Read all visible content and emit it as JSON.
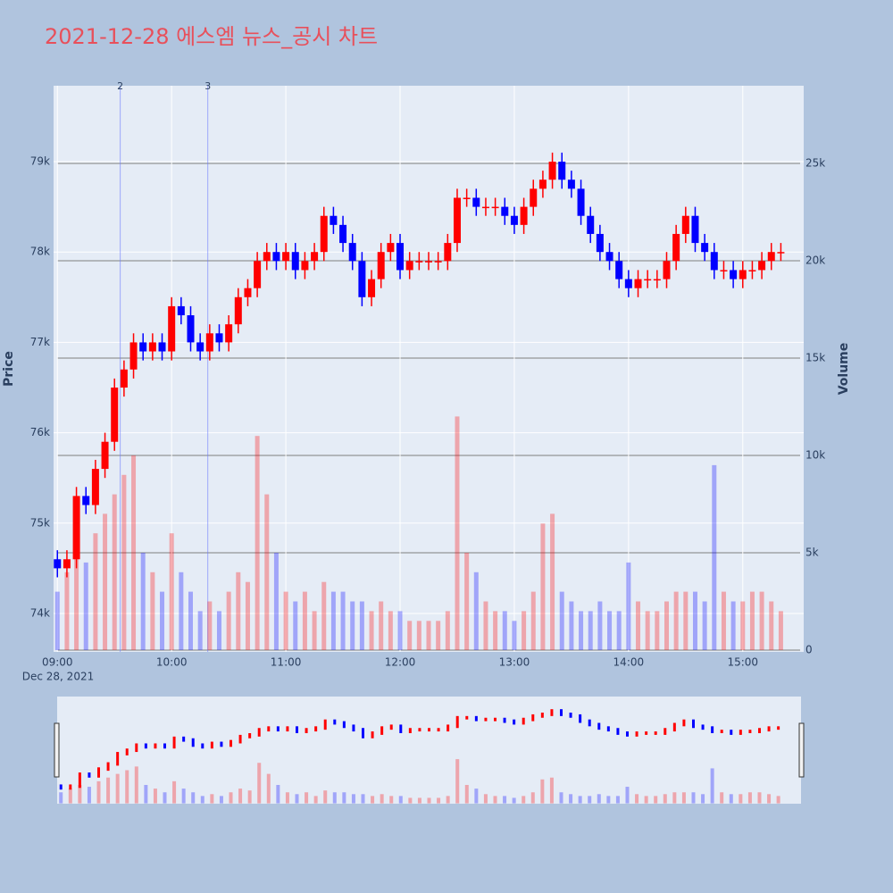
{
  "chart_data": {
    "type": "candlestick",
    "title": "2021-12-28 에스엠 뉴스_공시 차트",
    "y_label": "Price",
    "y2_label": "Volume",
    "x_date_label": "Dec 28, 2021",
    "xlim": [
      "08:58",
      "15:32"
    ],
    "xticks": [
      "09:00",
      "10:00",
      "11:00",
      "12:00",
      "13:00",
      "14:00",
      "15:00"
    ],
    "ylim": [
      73575,
      79840
    ],
    "yticks": [
      {
        "value": 74000,
        "label": "74k"
      },
      {
        "value": 75000,
        "label": "75k"
      },
      {
        "value": 76000,
        "label": "76k"
      },
      {
        "value": 77000,
        "label": "77k"
      },
      {
        "value": 78000,
        "label": "78k"
      },
      {
        "value": 79000,
        "label": "79k"
      }
    ],
    "y2lim": [
      -92,
      28990
    ],
    "y2ticks": [
      0,
      {
        "value": 5000,
        "label": "5k"
      },
      {
        "value": 10000,
        "label": "10k"
      },
      {
        "value": 15000,
        "label": "15k"
      },
      {
        "value": 20000,
        "label": "20k"
      },
      {
        "value": 25000,
        "label": "25k"
      }
    ],
    "increasing_color": "#ff0000",
    "decreasing_color": "#0000ff",
    "x": [
      "09:00",
      "09:05",
      "09:10",
      "09:15",
      "09:20",
      "09:25",
      "09:30",
      "09:35",
      "09:40",
      "09:45",
      "09:50",
      "09:55",
      "10:00",
      "10:05",
      "10:10",
      "10:15",
      "10:20",
      "10:25",
      "10:30",
      "10:35",
      "10:40",
      "10:45",
      "10:50",
      "10:55",
      "11:00",
      "11:05",
      "11:10",
      "11:15",
      "11:20",
      "11:25",
      "11:30",
      "11:35",
      "11:40",
      "11:45",
      "11:50",
      "11:55",
      "12:00",
      "12:05",
      "12:10",
      "12:15",
      "12:20",
      "12:25",
      "12:30",
      "12:35",
      "12:40",
      "12:45",
      "12:50",
      "12:55",
      "13:00",
      "13:05",
      "13:10",
      "13:15",
      "13:20",
      "13:25",
      "13:30",
      "13:35",
      "13:40",
      "13:45",
      "13:50",
      "13:55",
      "14:00",
      "14:05",
      "14:10",
      "14:15",
      "14:20",
      "14:25",
      "14:30",
      "14:35",
      "14:40",
      "14:45",
      "14:50",
      "14:55",
      "15:00",
      "15:05",
      "15:10",
      "15:15",
      "15:20"
    ],
    "open": [
      74600,
      74500,
      74600,
      75300,
      75200,
      75600,
      75900,
      76500,
      76700,
      77000,
      76900,
      77000,
      76900,
      77400,
      77300,
      77000,
      76900,
      77100,
      77000,
      77200,
      77500,
      77600,
      77900,
      78000,
      77900,
      78000,
      77800,
      77900,
      78000,
      78400,
      78300,
      78100,
      77900,
      77500,
      77700,
      78000,
      78100,
      77800,
      77900,
      77900,
      77900,
      77900,
      78100,
      78600,
      78600,
      78500,
      78500,
      78500,
      78400,
      78300,
      78500,
      78700,
      78800,
      79000,
      78800,
      78700,
      78400,
      78200,
      78000,
      77900,
      77700,
      77600,
      77700,
      77700,
      77700,
      77900,
      78200,
      78400,
      78100,
      78000,
      77800,
      77800,
      77700,
      77800,
      77800,
      77900,
      78000
    ],
    "high": [
      74700,
      74700,
      75400,
      75400,
      75700,
      76000,
      76600,
      76800,
      77100,
      77100,
      77100,
      77100,
      77500,
      77500,
      77400,
      77100,
      77200,
      77200,
      77300,
      77600,
      77700,
      78000,
      78100,
      78100,
      78100,
      78100,
      78000,
      78100,
      78500,
      78500,
      78400,
      78200,
      78000,
      77800,
      78100,
      78200,
      78200,
      78000,
      78000,
      78000,
      78000,
      78200,
      78700,
      78700,
      78700,
      78600,
      78600,
      78600,
      78500,
      78600,
      78800,
      78900,
      79100,
      79100,
      78900,
      78800,
      78500,
      78300,
      78100,
      78000,
      77800,
      77800,
      77800,
      77800,
      78000,
      78300,
      78500,
      78500,
      78200,
      78100,
      77900,
      77900,
      77900,
      77900,
      78000,
      78100,
      78100
    ],
    "low": [
      74400,
      74400,
      74500,
      75100,
      75100,
      75500,
      75800,
      76400,
      76600,
      76800,
      76800,
      76800,
      76800,
      77200,
      76900,
      76800,
      76800,
      76900,
      76900,
      77100,
      77400,
      77500,
      77800,
      77800,
      77800,
      77700,
      77700,
      77800,
      77900,
      78200,
      78000,
      77800,
      77400,
      77400,
      77600,
      77900,
      77700,
      77700,
      77800,
      77800,
      77800,
      77800,
      78000,
      78500,
      78400,
      78400,
      78400,
      78300,
      78200,
      78200,
      78400,
      78600,
      78700,
      78700,
      78600,
      78300,
      78100,
      77900,
      77800,
      77600,
      77500,
      77500,
      77600,
      77600,
      77600,
      77800,
      78100,
      78000,
      77900,
      77700,
      77700,
      77600,
      77600,
      77700,
      77700,
      77800,
      77900
    ],
    "close": [
      74500,
      74600,
      75300,
      75200,
      75600,
      75900,
      76500,
      76700,
      77000,
      76900,
      77000,
      76900,
      77400,
      77300,
      77000,
      76900,
      77100,
      77000,
      77200,
      77500,
      77600,
      77900,
      78000,
      77900,
      78000,
      77800,
      77900,
      78000,
      78400,
      78300,
      78100,
      77900,
      77500,
      77700,
      78000,
      78100,
      77800,
      77900,
      77900,
      77900,
      77900,
      78100,
      78600,
      78600,
      78500,
      78500,
      78500,
      78400,
      78300,
      78500,
      78700,
      78800,
      79000,
      78800,
      78700,
      78400,
      78200,
      78000,
      77900,
      77700,
      77600,
      77700,
      77700,
      77700,
      77900,
      78200,
      78400,
      78100,
      78000,
      77800,
      77800,
      77700,
      77800,
      77800,
      77900,
      78000,
      78000
    ],
    "volume": [
      3000,
      4000,
      5000,
      4500,
      6000,
      7000,
      8000,
      9000,
      10000,
      5000,
      4000,
      3000,
      6000,
      4000,
      3000,
      2000,
      2500,
      2000,
      3000,
      4000,
      3500,
      11000,
      8000,
      5000,
      3000,
      2500,
      3000,
      2000,
      3500,
      3000,
      3000,
      2500,
      2500,
      2000,
      2500,
      2000,
      2000,
      1500,
      1500,
      1500,
      1500,
      2000,
      12000,
      5000,
      4000,
      2500,
      2000,
      2000,
      1500,
      2000,
      3000,
      6500,
      7000,
      3000,
      2500,
      2000,
      2000,
      2500,
      2000,
      2000,
      4500,
      2500,
      2000,
      2000,
      2500,
      3000,
      3000,
      3000,
      2500,
      9500,
      3000,
      2500,
      2500,
      3000,
      3000,
      2500,
      2000
    ],
    "events": [
      {
        "x": "09:33",
        "label": "2"
      },
      {
        "x": "10:19",
        "label": "3"
      }
    ]
  }
}
